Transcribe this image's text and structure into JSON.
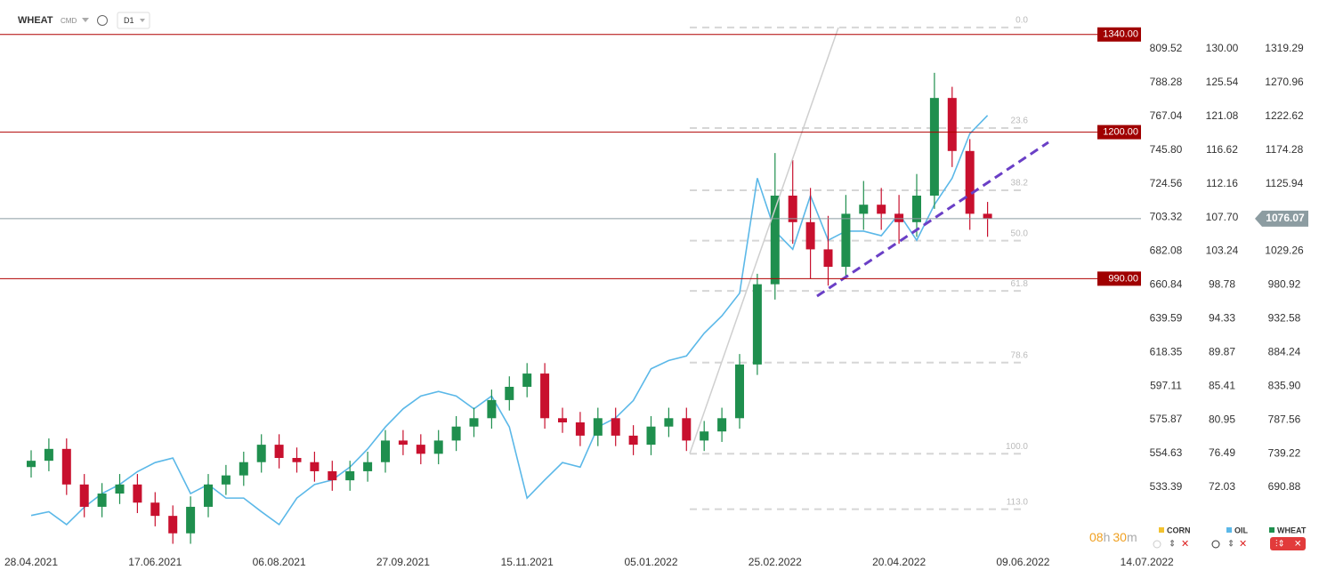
{
  "ui": {
    "symbol": "WHEAT",
    "market": "CMD",
    "interval": "D1",
    "countdown": [
      "08",
      "h",
      "30",
      "m"
    ]
  },
  "chart_data": {
    "type": "candlestick",
    "categories": [
      "28.04.2021",
      null,
      null,
      null,
      null,
      null,
      null,
      "17.06.2021",
      null,
      null,
      null,
      null,
      null,
      null,
      "06.08.2021",
      null,
      null,
      null,
      null,
      null,
      null,
      "27.09.2021",
      null,
      null,
      null,
      null,
      null,
      null,
      "15.11.2021",
      null,
      null,
      null,
      null,
      null,
      null,
      "05.01.2022",
      null,
      null,
      null,
      null,
      null,
      null,
      "25.02.2022",
      null,
      null,
      null,
      null,
      null,
      null,
      "20.04.2022",
      null,
      null,
      null,
      null,
      null,
      null,
      "09.06.2022",
      null,
      null,
      null,
      null,
      null,
      null,
      "14.07.2022"
    ],
    "up_color": "#1f8f4e",
    "down_color": "#c8102e",
    "series": [
      {
        "name": "CORN",
        "color": "#f2c230",
        "axis": "y3",
        "visible": false
      },
      {
        "name": "OIL",
        "color": "#5bb8e8",
        "type": "line",
        "axis": "y2",
        "values": [
          68.3,
          68.8,
          67.1,
          69.4,
          71.2,
          72.4,
          74.1,
          75.3,
          75.9,
          71.2,
          72.4,
          70.6,
          70.6,
          68.8,
          67.1,
          70.6,
          72.4,
          73.0,
          74.7,
          77.1,
          80.0,
          82.4,
          84.1,
          84.7,
          84.1,
          82.4,
          84.1,
          80.0,
          70.6,
          73.0,
          75.3,
          74.7,
          80.0,
          81.2,
          83.5,
          87.7,
          88.8,
          89.4,
          92.4,
          94.7,
          97.7,
          112.9,
          105.9,
          103.5,
          110.6,
          104.7,
          105.9,
          105.9,
          105.3,
          108.2,
          104.7,
          109.4,
          112.9,
          118.8,
          121.2,
          null,
          null,
          null,
          null,
          null,
          null,
          null,
          null,
          null
        ]
      },
      {
        "name": "WHEAT",
        "color": "#1f8f4e",
        "type": "candlestick",
        "open": [
          720,
          729,
          746,
          695,
          663,
          682,
          695,
          669,
          650,
          625,
          663,
          695,
          708,
          727,
          752,
          733,
          727,
          714,
          701,
          714,
          727,
          758,
          752,
          739,
          758,
          778,
          790,
          816,
          835,
          854,
          790,
          784,
          765,
          790,
          765,
          752,
          778,
          790,
          758,
          771,
          790,
          867,
          982,
          1109,
          1071,
          1032,
          1007,
          1083,
          1096,
          1083,
          1071,
          1109,
          1249,
          1173,
          1083,
          null,
          null,
          null,
          null,
          null,
          null,
          null,
          null,
          null
        ],
        "high": [
          744,
          761,
          761,
          710,
          697,
          710,
          710,
          684,
          665,
          678,
          710,
          723,
          742,
          767,
          767,
          748,
          742,
          729,
          729,
          742,
          773,
          773,
          767,
          773,
          793,
          805,
          831,
          850,
          869,
          869,
          805,
          799,
          805,
          805,
          780,
          793,
          805,
          805,
          786,
          805,
          882,
          997,
          1170,
          1160,
          1120,
          1080,
          1110,
          1130,
          1120,
          1110,
          1140,
          1285,
          1265,
          1190,
          1100,
          null,
          null,
          null,
          null,
          null,
          null,
          null,
          null,
          null
        ],
        "low": [
          705,
          714,
          680,
          648,
          648,
          667,
          654,
          635,
          610,
          610,
          648,
          680,
          693,
          712,
          718,
          712,
          699,
          686,
          686,
          699,
          712,
          737,
          724,
          724,
          743,
          763,
          775,
          801,
          820,
          775,
          769,
          750,
          750,
          750,
          737,
          737,
          763,
          743,
          743,
          756,
          775,
          852,
          960,
          1040,
          990,
          980,
          990,
          1060,
          1060,
          1040,
          1050,
          1090,
          1150,
          1060,
          1050,
          null,
          null,
          null,
          null,
          null,
          null,
          null,
          null,
          null
        ],
        "close": [
          729,
          746,
          695,
          663,
          682,
          695,
          669,
          650,
          625,
          663,
          695,
          708,
          727,
          752,
          733,
          727,
          714,
          701,
          714,
          727,
          758,
          752,
          739,
          758,
          778,
          790,
          816,
          835,
          854,
          790,
          784,
          765,
          790,
          765,
          752,
          778,
          790,
          758,
          771,
          790,
          867,
          982,
          1109,
          1071,
          1032,
          1007,
          1083,
          1096,
          1083,
          1071,
          1109,
          1249,
          1173,
          1083,
          1076.07,
          null,
          null,
          null,
          null,
          null,
          null,
          null,
          null,
          null
        ]
      }
    ],
    "ylim": [
      599.2,
      1389.4
    ],
    "yticks": [
      1319.29,
      1270.96,
      1222.62,
      1174.28,
      1125.94,
      1029.26,
      980.92,
      932.58,
      884.24,
      {
        "value": 835.9,
        "label": "835.90"
      },
      787.56,
      739.22,
      690.88
    ],
    "y2lim": [
      63.56,
      136.47
    ],
    "y2ticks": [
      {
        "value": 130,
        "label": "130.00"
      },
      125.54,
      121.08,
      116.62,
      112.16,
      {
        "value": 107.7,
        "label": "107.70"
      },
      103.24,
      98.78,
      94.33,
      89.87,
      85.41,
      80.95,
      76.49,
      72.03
    ],
    "y3lim": [
      493.0,
      840.33
    ],
    "y3ticks": [
      809.52,
      788.28,
      767.04,
      {
        "value": 745.8,
        "label": "745.80"
      },
      724.56,
      703.32,
      682.08,
      660.84,
      639.59,
      618.35,
      597.11,
      575.87,
      554.63,
      533.39
    ],
    "price_lines": [
      {
        "value": 1340,
        "label": "1340.00"
      },
      {
        "value": 1200,
        "label": "1200.00"
      },
      {
        "value": 990,
        "label": "990.00"
      }
    ],
    "last_price": 1076.07,
    "fibonacci": {
      "high": 1350,
      "low": 739,
      "levels": [
        {
          "value": 0,
          "label": "0.0"
        },
        23.6,
        38.2,
        {
          "value": 50,
          "label": "50.0"
        },
        61.8,
        78.6,
        {
          "value": 100,
          "label": "100.0"
        },
        {
          "value": 113,
          "label": "113.0"
        }
      ]
    }
  }
}
